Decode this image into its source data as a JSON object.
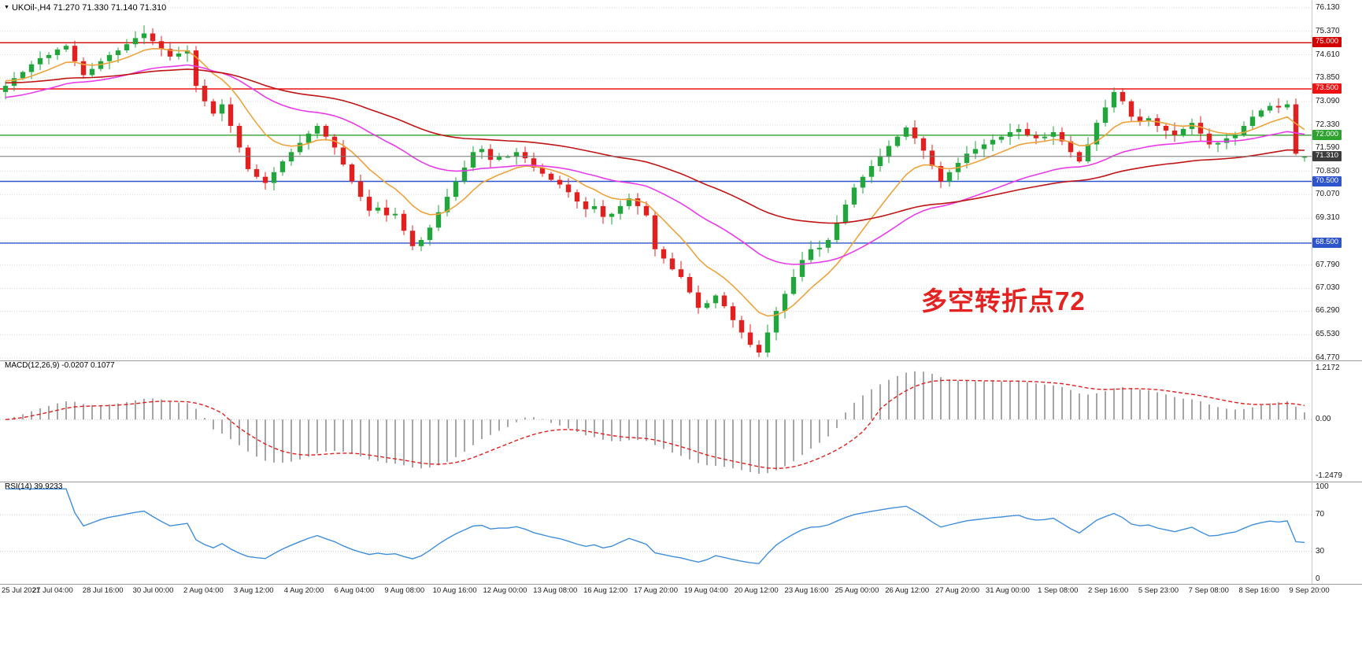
{
  "header": {
    "marker": "▼",
    "symbol": "UKOil-,H4",
    "ohlc": "71.270 71.330 71.140 71.310"
  },
  "annotation": {
    "text": "多空转折点72",
    "color": "#e32222"
  },
  "macd_panel": {
    "label": "MACD(12,26,9)",
    "values": "-0.0207 0.1077",
    "axis_top": "1.2172",
    "axis_zero": "0.00",
    "axis_bottom": "-1.2479"
  },
  "rsi_panel": {
    "label": "RSI(14)",
    "value": "39.9233",
    "axis_labels": [
      "100",
      "70",
      "30",
      "0"
    ]
  },
  "chart_data": {
    "type": "candlestick",
    "symbol": "UKOil-",
    "timeframe": "H4",
    "current_ohlc": {
      "open": 71.27,
      "high": 71.33,
      "low": 71.14,
      "close": 71.31
    },
    "price_axis": {
      "max": 76.13,
      "min": 64.77,
      "ticks": [
        76.13,
        75.37,
        74.61,
        73.85,
        73.09,
        72.33,
        71.59,
        70.83,
        70.07,
        69.31,
        68.55,
        67.79,
        67.03,
        66.29,
        65.53,
        64.77
      ],
      "tick_labels": [
        "76.130",
        "75.370",
        "74.610",
        "73.850",
        "73.090",
        "72.330",
        "71.590",
        "70.830",
        "70.070",
        "69.310",
        "",
        "67.790",
        "67.030",
        "66.290",
        "65.530",
        "64.770"
      ]
    },
    "levels": [
      {
        "price": 75.0,
        "label": "75.000",
        "color": "#d40000"
      },
      {
        "price": 73.5,
        "label": "73.500",
        "color": "#ee1212"
      },
      {
        "price": 72.0,
        "label": "72.000",
        "color": "#2fa32f"
      },
      {
        "price": 70.5,
        "label": "70.500",
        "color": "#2f55cc"
      },
      {
        "price": 68.5,
        "label": "68.500",
        "color": "#2f55cc"
      }
    ],
    "current_price": {
      "value": 71.31,
      "label": "71.310",
      "line_color": "#777777",
      "badge_color": "#3c3c3c"
    },
    "candles": {
      "first_open": 73.4,
      "up_color": "#22a53c",
      "down_color": "#e22020",
      "closes": [
        73.6,
        73.85,
        74.05,
        74.3,
        74.5,
        74.6,
        74.78,
        74.9,
        74.4,
        73.95,
        74.15,
        74.4,
        74.6,
        74.75,
        74.95,
        75.15,
        75.3,
        75.05,
        74.8,
        74.55,
        74.65,
        74.75,
        73.6,
        73.1,
        72.7,
        73.0,
        72.3,
        71.6,
        70.9,
        70.65,
        70.45,
        70.8,
        71.15,
        71.45,
        71.75,
        72.05,
        72.3,
        71.95,
        71.6,
        71.05,
        70.5,
        70.0,
        69.55,
        69.65,
        69.4,
        69.45,
        68.9,
        68.4,
        68.6,
        69.0,
        69.5,
        70.0,
        70.5,
        70.95,
        71.45,
        71.55,
        71.2,
        71.3,
        71.3,
        71.45,
        71.25,
        70.95,
        70.75,
        70.55,
        70.4,
        70.15,
        69.85,
        69.6,
        69.7,
        69.35,
        69.45,
        69.7,
        69.95,
        69.7,
        69.4,
        68.3,
        68.0,
        67.65,
        67.4,
        66.9,
        66.4,
        66.55,
        66.8,
        66.45,
        66.0,
        65.6,
        65.2,
        64.95,
        65.6,
        66.3,
        66.85,
        67.4,
        67.95,
        68.3,
        68.35,
        68.6,
        69.15,
        69.75,
        70.3,
        70.65,
        71.0,
        71.3,
        71.65,
        71.95,
        72.25,
        71.9,
        71.5,
        71.0,
        70.5,
        70.8,
        71.1,
        71.4,
        71.55,
        71.7,
        71.85,
        71.95,
        72.1,
        72.2,
        72.0,
        71.9,
        71.95,
        72.1,
        71.8,
        71.45,
        71.15,
        71.7,
        72.4,
        72.9,
        73.4,
        73.1,
        72.6,
        72.45,
        72.55,
        72.3,
        72.15,
        72.0,
        72.2,
        72.4,
        72.05,
        71.7,
        71.75,
        71.9,
        72.0,
        72.3,
        72.6,
        72.8,
        72.95,
        72.9,
        73.0,
        71.4,
        71.31
      ]
    },
    "overlays": [
      {
        "name": "ma-fast-orange",
        "period": 10,
        "seed": 73.8,
        "color": "#eda33c"
      },
      {
        "name": "ma-mid-magenta",
        "period": 32,
        "seed": 73.2,
        "color": "#e83ce8"
      },
      {
        "name": "ma-slow-red",
        "period": 65,
        "seed": 73.7,
        "color": "#c01515"
      }
    ],
    "x_axis_labels": [
      "25 Jul 2021",
      "27 Jul 04:00",
      "28 Jul 16:00",
      "30 Jul 00:00",
      "2 Aug 04:00",
      "3 Aug 12:00",
      "4 Aug 20:00",
      "6 Aug 04:00",
      "9 Aug 08:00",
      "10 Aug 16:00",
      "12 Aug 00:00",
      "13 Aug 08:00",
      "16 Aug 12:00",
      "17 Aug 20:00",
      "19 Aug 04:00",
      "20 Aug 12:00",
      "23 Aug 16:00",
      "25 Aug 00:00",
      "26 Aug 12:00",
      "27 Aug 20:00",
      "31 Aug 00:00",
      "1 Sep 08:00",
      "2 Sep 16:00",
      "5 Sep 23:00",
      "7 Sep 08:00",
      "8 Sep 16:00",
      "9 Sep 20:00"
    ],
    "macd": {
      "fast": 12,
      "slow": 26,
      "signal": 9,
      "current_macd": -0.0207,
      "current_signal": 0.1077,
      "axis_max": 1.2172,
      "axis_min": -1.2479,
      "histogram_color": "#a6a6a6",
      "signal_color": "#e02020"
    },
    "rsi": {
      "period": 14,
      "current": 39.9233,
      "color": "#3f8edc",
      "guide_levels": [
        70,
        30
      ]
    }
  }
}
